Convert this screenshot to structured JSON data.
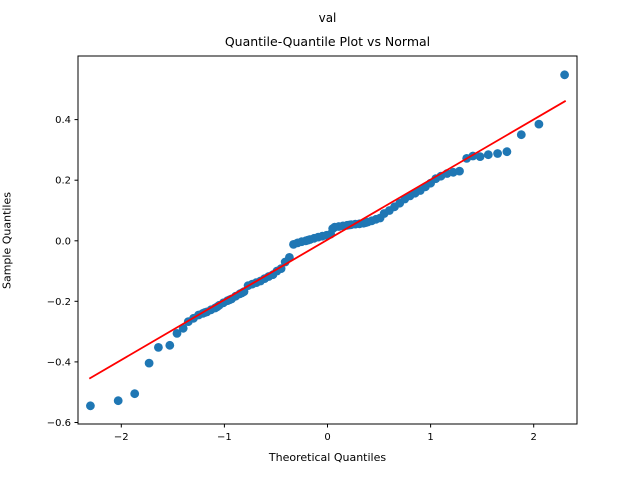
{
  "figure": {
    "suptitle": "val",
    "background": "#ffffff"
  },
  "chart_data": {
    "type": "scatter",
    "suptitle": "val",
    "title": "Quantile-Quantile Plot vs Normal",
    "xlabel": "Theoretical Quantiles",
    "ylabel": "Sample Quantiles",
    "xlim": [
      -2.42,
      2.42
    ],
    "ylim": [
      -0.605,
      0.61
    ],
    "grid": false,
    "legend": "none",
    "marker_color": "#1f77b4",
    "marker_radius": 4.4,
    "line_color": "#ff0000",
    "line_width": 1.8,
    "axis_color": "#000000",
    "tick_label_color": "#000000",
    "x_ticks": [
      {
        "value": -2,
        "label": "−2"
      },
      {
        "value": -1,
        "label": "−1"
      },
      {
        "value": 0,
        "label": "0"
      },
      {
        "value": 1,
        "label": "1"
      },
      {
        "value": 2,
        "label": "2"
      }
    ],
    "y_ticks": [
      {
        "value": 0.4,
        "label": "0.4"
      },
      {
        "value": 0.2,
        "label": "0.2"
      },
      {
        "value": 0.0,
        "label": "0.0"
      },
      {
        "value": -0.2,
        "label": "−0.2"
      },
      {
        "value": -0.4,
        "label": "−0.4"
      },
      {
        "value": -0.6,
        "label": "−0.6"
      }
    ],
    "fit_line": {
      "x": [
        -2.31,
        2.31
      ],
      "y": [
        -0.455,
        0.462
      ]
    },
    "points": [
      [
        -2.3,
        -0.545
      ],
      [
        -2.03,
        -0.528
      ],
      [
        -1.87,
        -0.505
      ],
      [
        -1.73,
        -0.404
      ],
      [
        -1.64,
        -0.352
      ],
      [
        -1.53,
        -0.345
      ],
      [
        -1.46,
        -0.306
      ],
      [
        -1.4,
        -0.289
      ],
      [
        -1.35,
        -0.267
      ],
      [
        -1.3,
        -0.256
      ],
      [
        -1.25,
        -0.245
      ],
      [
        -1.21,
        -0.24
      ],
      [
        -1.19,
        -0.237
      ],
      [
        -1.17,
        -0.235
      ],
      [
        -1.13,
        -0.228
      ],
      [
        -1.09,
        -0.222
      ],
      [
        -1.07,
        -0.218
      ],
      [
        -1.05,
        -0.213
      ],
      [
        -1.01,
        -0.205
      ],
      [
        -0.97,
        -0.198
      ],
      [
        -0.95,
        -0.195
      ],
      [
        -0.93,
        -0.192
      ],
      [
        -0.89,
        -0.183
      ],
      [
        -0.85,
        -0.175
      ],
      [
        -0.83,
        -0.172
      ],
      [
        -0.81,
        -0.168
      ],
      [
        -0.77,
        -0.148
      ],
      [
        -0.73,
        -0.143
      ],
      [
        -0.69,
        -0.138
      ],
      [
        -0.65,
        -0.133
      ],
      [
        -0.61,
        -0.125
      ],
      [
        -0.57,
        -0.118
      ],
      [
        -0.53,
        -0.112
      ],
      [
        -0.49,
        -0.1
      ],
      [
        -0.45,
        -0.092
      ],
      [
        -0.41,
        -0.07
      ],
      [
        -0.37,
        -0.055
      ],
      [
        -0.33,
        -0.012
      ],
      [
        -0.29,
        -0.007
      ],
      [
        -0.25,
        -0.003
      ],
      [
        -0.21,
        0.0
      ],
      [
        -0.19,
        0.002
      ],
      [
        -0.17,
        0.004
      ],
      [
        -0.13,
        0.008
      ],
      [
        -0.09,
        0.012
      ],
      [
        -0.05,
        0.015
      ],
      [
        -0.01,
        0.018
      ],
      [
        0.03,
        0.022
      ],
      [
        0.05,
        0.04
      ],
      [
        0.07,
        0.045
      ],
      [
        0.11,
        0.047
      ],
      [
        0.15,
        0.049
      ],
      [
        0.19,
        0.051
      ],
      [
        0.21,
        0.052
      ],
      [
        0.23,
        0.053
      ],
      [
        0.27,
        0.055
      ],
      [
        0.31,
        0.056
      ],
      [
        0.35,
        0.058
      ],
      [
        0.37,
        0.06
      ],
      [
        0.39,
        0.062
      ],
      [
        0.43,
        0.066
      ],
      [
        0.47,
        0.071
      ],
      [
        0.51,
        0.075
      ],
      [
        0.55,
        0.09
      ],
      [
        0.6,
        0.1
      ],
      [
        0.65,
        0.112
      ],
      [
        0.7,
        0.124
      ],
      [
        0.75,
        0.138
      ],
      [
        0.8,
        0.148
      ],
      [
        0.85,
        0.157
      ],
      [
        0.9,
        0.166
      ],
      [
        0.95,
        0.178
      ],
      [
        1.0,
        0.19
      ],
      [
        1.05,
        0.205
      ],
      [
        1.1,
        0.213
      ],
      [
        1.16,
        0.222
      ],
      [
        1.22,
        0.226
      ],
      [
        1.28,
        0.23
      ],
      [
        1.35,
        0.272
      ],
      [
        1.41,
        0.28
      ],
      [
        1.48,
        0.278
      ],
      [
        1.56,
        0.284
      ],
      [
        1.65,
        0.288
      ],
      [
        1.74,
        0.294
      ],
      [
        1.88,
        0.35
      ],
      [
        2.05,
        0.385
      ],
      [
        2.3,
        0.548
      ]
    ]
  }
}
